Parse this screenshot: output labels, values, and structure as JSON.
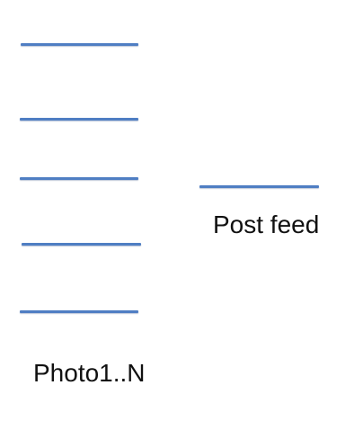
{
  "colors": {
    "line": "#4f7ec3",
    "text": "#111111",
    "background": "#ffffff"
  },
  "diagram": {
    "photo_group": {
      "count_shown": 5,
      "label": "Photo1..N"
    },
    "post_group": {
      "count_shown": 1,
      "label": "Post feed"
    }
  }
}
